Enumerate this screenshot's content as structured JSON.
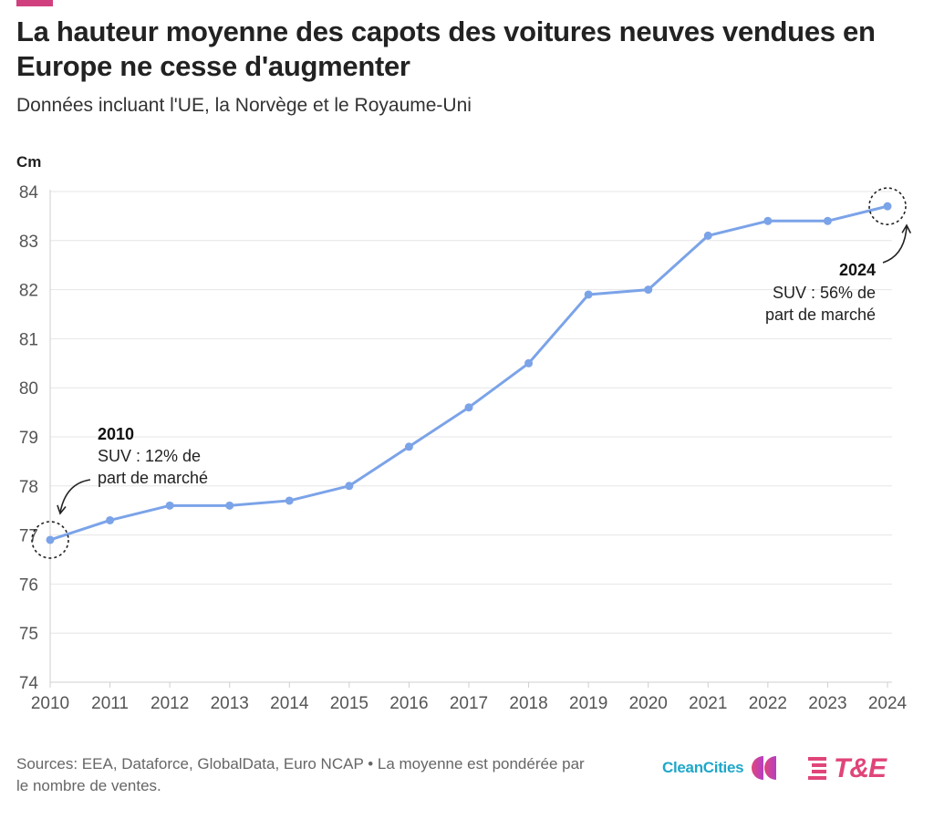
{
  "colors": {
    "accent": "#d1407e",
    "line": "#7ba3e8",
    "grid": "#e6e6e6",
    "cleancities": "#1fa7c9",
    "te": "#e0457a"
  },
  "header": {
    "title": "La hauteur moyenne des capots des voitures neuves vendues en Europe ne cesse d'augmenter",
    "subtitle": "Données incluant l'UE, la Norvège et le Royaume-Uni"
  },
  "chart_data": {
    "type": "line",
    "ylabel": "Cm",
    "xlabel": "",
    "ylim": [
      74,
      84
    ],
    "yticks": [
      74,
      75,
      76,
      77,
      78,
      79,
      80,
      81,
      82,
      83,
      84
    ],
    "grid": true,
    "categories": [
      "2010",
      "2011",
      "2012",
      "2013",
      "2014",
      "2015",
      "2016",
      "2017",
      "2018",
      "2019",
      "2020",
      "2021",
      "2022",
      "2023",
      "2024"
    ],
    "series": [
      {
        "values": [
          76.9,
          77.3,
          77.6,
          77.6,
          77.7,
          78.0,
          78.8,
          79.6,
          80.5,
          81.9,
          82.0,
          83.1,
          83.4,
          83.4,
          83.7
        ]
      }
    ],
    "annotations": [
      {
        "point_index": 0,
        "year": "2010",
        "lines": [
          "SUV : 12% de",
          "part de marché"
        ]
      },
      {
        "point_index": 14,
        "year": "2024",
        "lines": [
          "SUV : 56% de",
          "part de marché"
        ]
      }
    ]
  },
  "footer": {
    "source": "Sources: EEA, Dataforce, GlobalData, Euro NCAP • La moyenne est pondérée par le nombre de ventes."
  },
  "logos": {
    "cleancities": "CleanCities",
    "te": "T&E"
  }
}
